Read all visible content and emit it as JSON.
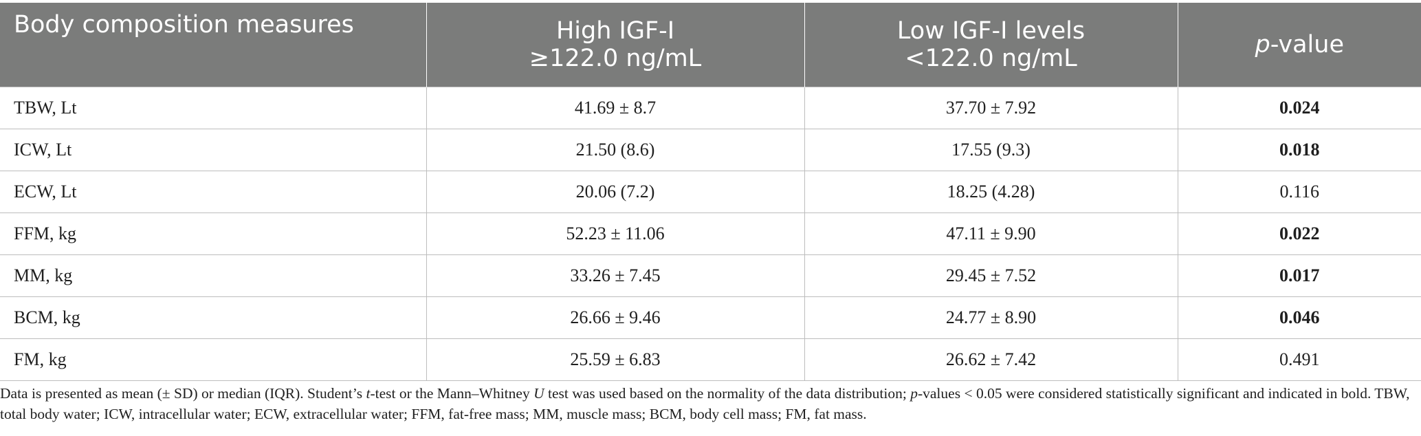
{
  "table": {
    "headers": {
      "col1": "Body composition measures",
      "col2_line1": "High IGF-I",
      "col2_line2": "≥122.0 ng/mL",
      "col3_line1": "Low IGF-I levels",
      "col3_line2": "<122.0 ng/mL",
      "col4_italic": "p",
      "col4_rest": "-value"
    },
    "rows": [
      {
        "measure": "TBW, Lt",
        "high": "41.69 ± 8.7",
        "low": "37.70 ± 7.92",
        "p": "0.024",
        "bold": true
      },
      {
        "measure": "ICW, Lt",
        "high": "21.50 (8.6)",
        "low": "17.55 (9.3)",
        "p": "0.018",
        "bold": true
      },
      {
        "measure": "ECW, Lt",
        "high": "20.06 (7.2)",
        "low": "18.25 (4.28)",
        "p": "0.116",
        "bold": false
      },
      {
        "measure": "FFM, kg",
        "high": "52.23 ± 11.06",
        "low": "47.11 ± 9.90",
        "p": "0.022",
        "bold": true
      },
      {
        "measure": "MM, kg",
        "high": "33.26 ± 7.45",
        "low": "29.45 ± 7.52",
        "p": "0.017",
        "bold": true
      },
      {
        "measure": "BCM, kg",
        "high": "26.66 ± 9.46",
        "low": "24.77 ± 8.90",
        "p": "0.046",
        "bold": true
      },
      {
        "measure": "FM, kg",
        "high": "25.59 ± 6.83",
        "low": "26.62 ± 7.42",
        "p": "0.491",
        "bold": false
      }
    ]
  },
  "footnote": {
    "seg1": "Data is presented as mean (± SD) or median (IQR). Student’s ",
    "seg2_italic": "t",
    "seg3": "-test or the Mann–Whitney ",
    "seg4_italic": "U",
    "seg5": " test was used based on the normality of the data distribution; ",
    "seg6_italic": "p",
    "seg7": "-values < 0.05 were considered statistically significant and indicated in bold. TBW, total body water; ICW, intracellular water; ECW, extracellular water; FFM, fat-free mass; MM, muscle mass; BCM, body cell mass; FM, fat mass."
  }
}
